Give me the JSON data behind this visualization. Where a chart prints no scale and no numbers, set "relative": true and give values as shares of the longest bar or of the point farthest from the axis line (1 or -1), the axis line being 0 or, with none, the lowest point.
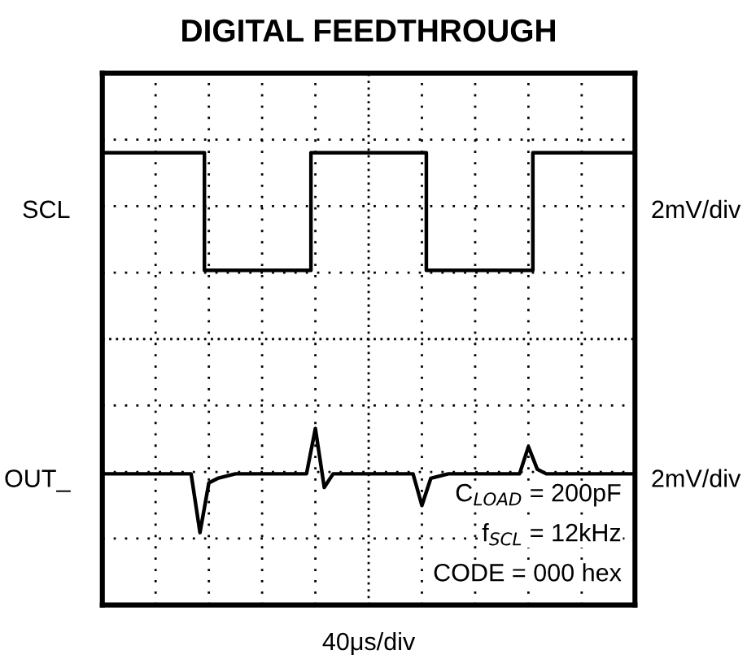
{
  "chart_data": {
    "type": "line",
    "title": "DIGITAL FEEDTHROUGH",
    "xlabel": "40μs/div",
    "relative": true,
    "grid": true,
    "legend": false,
    "categories": [
      null,
      null,
      null,
      null,
      null,
      null,
      null,
      null,
      null,
      null,
      null,
      null,
      null,
      null,
      null,
      null,
      null,
      null,
      null,
      null,
      null,
      null,
      null,
      null,
      null,
      null,
      null,
      null,
      null,
      null,
      null,
      null,
      null,
      null,
      null,
      null,
      null,
      null,
      null,
      null,
      null,
      null,
      null,
      null,
      null,
      null,
      null,
      null,
      null,
      null,
      null,
      null,
      null,
      null,
      null,
      null,
      null,
      null,
      null,
      null,
      null
    ],
    "series": [
      {
        "name": "SCL",
        "type": "step",
        "color": "#000000",
        "values": [
          1,
          1,
          1,
          1,
          1,
          1,
          1,
          1,
          1,
          1,
          1,
          1,
          0.74,
          0.74,
          0.74,
          0.74,
          0.74,
          0.74,
          0.74,
          0.74,
          0.74,
          0.74,
          0.74,
          0.74,
          1,
          1,
          1,
          1,
          1,
          1,
          1,
          1,
          1,
          1,
          1,
          1,
          1,
          0.74,
          0.74,
          0.74,
          0.74,
          0.74,
          0.74,
          0.74,
          0.74,
          0.74,
          0.74,
          0.74,
          0.74,
          1,
          1,
          1,
          1,
          1,
          1,
          1,
          1,
          1,
          1,
          1,
          1
        ]
      },
      {
        "name": "OUT_",
        "color": "#000000",
        "values": [
          0.29,
          0.29,
          0.29,
          0.29,
          0.29,
          0.29,
          0.29,
          0.29,
          0.29,
          0.29,
          0.29,
          0.16,
          0.27,
          0.28,
          0.285,
          0.29,
          0.29,
          0.29,
          0.29,
          0.29,
          0.29,
          0.29,
          0.29,
          0.29,
          0.39,
          0.26,
          0.29,
          0.29,
          0.29,
          0.29,
          0.29,
          0.29,
          0.29,
          0.29,
          0.29,
          0.29,
          0.22,
          0.28,
          0.285,
          0.29,
          0.29,
          0.29,
          0.29,
          0.29,
          0.29,
          0.29,
          0.29,
          0.29,
          0.35,
          0.3,
          0.29,
          0.29,
          0.29,
          0.29,
          0.29,
          0.29,
          0.29,
          0.29,
          0.29,
          0.29,
          0.29
        ]
      }
    ],
    "annotations": [
      "2mV/div",
      "2mV/div",
      "C$_{LOAD}$ = 200pF",
      "f$_{SCL}$ = 12kHz",
      "CODE = 000 hex"
    ]
  }
}
